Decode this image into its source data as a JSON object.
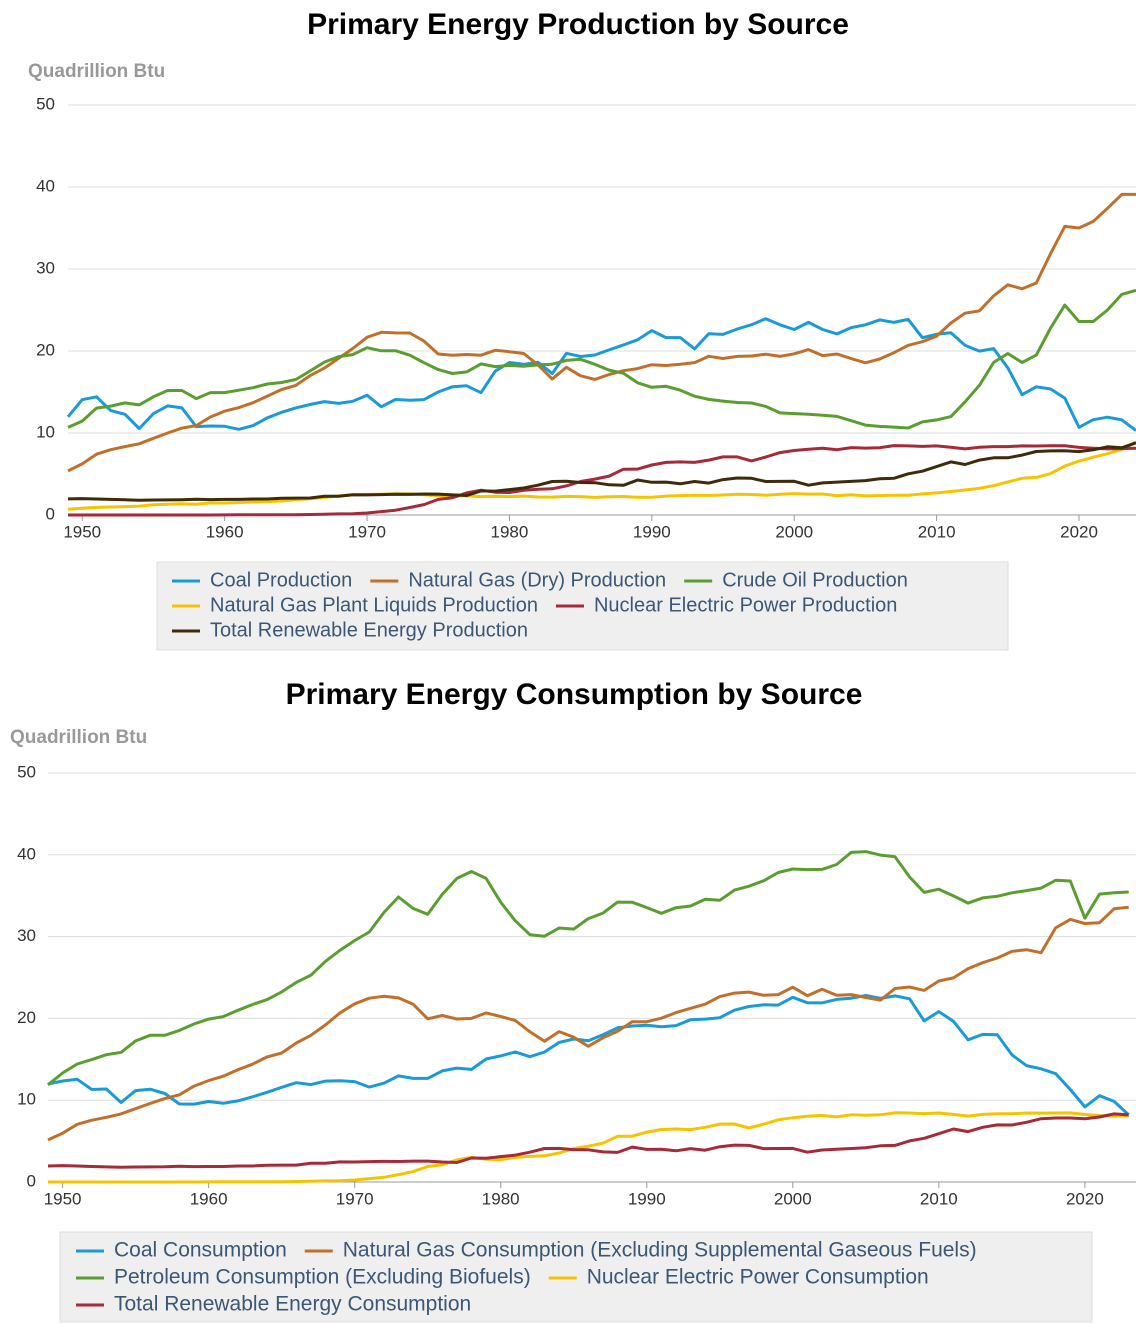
{
  "chart_data": [
    {
      "type": "line",
      "title": "Primary Energy Production by Source",
      "y_label": "Quadrillion Btu",
      "x": [
        1949,
        1950,
        1951,
        1952,
        1953,
        1954,
        1955,
        1956,
        1957,
        1958,
        1959,
        1960,
        1961,
        1962,
        1963,
        1964,
        1965,
        1966,
        1967,
        1968,
        1969,
        1970,
        1971,
        1972,
        1973,
        1974,
        1975,
        1976,
        1977,
        1978,
        1979,
        1980,
        1981,
        1982,
        1983,
        1984,
        1985,
        1986,
        1987,
        1988,
        1989,
        1990,
        1991,
        1992,
        1993,
        1994,
        1995,
        1996,
        1997,
        1998,
        1999,
        2000,
        2001,
        2002,
        2003,
        2004,
        2005,
        2006,
        2007,
        2008,
        2009,
        2010,
        2011,
        2012,
        2013,
        2014,
        2015,
        2016,
        2017,
        2018,
        2019,
        2020,
        2021,
        2022,
        2023,
        2024
      ],
      "xlim": [
        1949,
        2024
      ],
      "xticks": [
        1950,
        1960,
        1970,
        1980,
        1990,
        2000,
        2010,
        2020
      ],
      "ylim": [
        0,
        50
      ],
      "yticks": [
        0,
        10,
        20,
        30,
        40,
        50
      ],
      "grid": true,
      "series": [
        {
          "name": "Coal Production",
          "color": "#1a9ad6",
          "values": [
            11.97,
            14.06,
            14.41,
            12.73,
            12.28,
            10.54,
            12.37,
            13.31,
            13.06,
            10.78,
            10.85,
            10.82,
            10.45,
            10.9,
            11.85,
            12.52,
            13.06,
            13.47,
            13.83,
            13.61,
            13.86,
            14.61,
            13.19,
            14.09,
            13.99,
            14.07,
            15.0,
            15.65,
            15.76,
            14.91,
            17.54,
            18.6,
            18.38,
            18.64,
            17.25,
            19.72,
            19.33,
            19.51,
            20.14,
            20.74,
            21.36,
            22.49,
            21.64,
            21.63,
            20.25,
            22.11,
            22.03,
            22.68,
            23.21,
            23.94,
            23.19,
            22.62,
            23.49,
            22.62,
            22.09,
            22.85,
            23.19,
            23.79,
            23.49,
            23.85,
            21.62,
            22.04,
            22.22,
            20.68,
            19.99,
            20.29,
            17.95,
            14.67,
            15.63,
            15.36,
            14.26,
            10.7,
            11.62,
            11.93,
            11.6,
            10.3
          ]
        },
        {
          "name": "Natural Gas (Dry) Production",
          "color": "#c0702a",
          "values": [
            5.38,
            6.23,
            7.42,
            7.96,
            8.34,
            8.68,
            9.35,
            10.0,
            10.6,
            10.9,
            11.95,
            12.66,
            13.1,
            13.7,
            14.5,
            15.3,
            15.8,
            17.0,
            17.9,
            19.1,
            20.3,
            21.67,
            22.28,
            22.21,
            22.19,
            21.21,
            19.64,
            19.48,
            19.57,
            19.49,
            20.08,
            19.91,
            19.7,
            18.32,
            16.59,
            18.01,
            16.98,
            16.54,
            17.14,
            17.6,
            17.85,
            18.33,
            18.23,
            18.38,
            18.58,
            19.35,
            19.08,
            19.34,
            19.39,
            19.61,
            19.34,
            19.66,
            20.17,
            19.44,
            19.63,
            19.07,
            18.56,
            19.02,
            19.79,
            20.7,
            21.14,
            21.81,
            23.41,
            24.61,
            24.89,
            26.72,
            28.07,
            27.58,
            28.29,
            31.88,
            35.19,
            35.0,
            35.8,
            37.4,
            39.1,
            39.1
          ]
        },
        {
          "name": "Crude Oil Production",
          "color": "#5a9e2f",
          "values": [
            10.68,
            11.45,
            13.04,
            13.28,
            13.67,
            13.43,
            14.41,
            15.18,
            15.18,
            14.2,
            14.93,
            14.93,
            15.22,
            15.52,
            15.97,
            16.16,
            16.52,
            17.56,
            18.65,
            19.31,
            19.56,
            20.4,
            20.03,
            20.04,
            19.49,
            18.57,
            17.73,
            17.26,
            17.45,
            18.43,
            18.1,
            18.25,
            18.15,
            18.31,
            18.39,
            18.85,
            18.99,
            18.38,
            17.67,
            17.28,
            16.12,
            15.57,
            15.7,
            15.22,
            14.49,
            14.1,
            13.89,
            13.72,
            13.66,
            13.24,
            12.45,
            12.36,
            12.28,
            12.16,
            12.03,
            11.5,
            10.96,
            10.8,
            10.72,
            10.61,
            11.35,
            11.6,
            12.0,
            13.8,
            15.8,
            18.6,
            19.7,
            18.6,
            19.5,
            22.8,
            25.6,
            23.6,
            23.6,
            25.0,
            26.9,
            27.4
          ]
        },
        {
          "name": "Natural Gas Plant Liquids Production",
          "color": "#f5c400",
          "values": [
            0.71,
            0.82,
            0.93,
            0.98,
            1.03,
            1.08,
            1.24,
            1.32,
            1.36,
            1.32,
            1.48,
            1.46,
            1.53,
            1.59,
            1.64,
            1.71,
            1.88,
            1.99,
            2.14,
            2.33,
            2.45,
            2.51,
            2.54,
            2.6,
            2.57,
            2.47,
            2.37,
            2.33,
            2.33,
            2.25,
            2.29,
            2.25,
            2.31,
            2.19,
            2.18,
            2.27,
            2.24,
            2.15,
            2.22,
            2.26,
            2.16,
            2.17,
            2.31,
            2.36,
            2.41,
            2.39,
            2.44,
            2.53,
            2.5,
            2.42,
            2.53,
            2.61,
            2.55,
            2.56,
            2.35,
            2.47,
            2.33,
            2.36,
            2.41,
            2.42,
            2.57,
            2.69,
            2.87,
            3.05,
            3.25,
            3.57,
            4.02,
            4.47,
            4.59,
            5.05,
            5.96,
            6.57,
            7.05,
            7.48,
            8.0,
            8.9
          ]
        },
        {
          "name": "Nuclear Electric Power Production",
          "color": "#a52a3a",
          "values": [
            0,
            0,
            0,
            0,
            0,
            0,
            0,
            0,
            0,
            0,
            0,
            0.01,
            0.02,
            0.03,
            0.04,
            0.04,
            0.04,
            0.06,
            0.09,
            0.14,
            0.15,
            0.24,
            0.41,
            0.58,
            0.91,
            1.27,
            1.9,
            2.11,
            2.7,
            3.02,
            2.78,
            2.74,
            3.01,
            3.13,
            3.2,
            3.55,
            4.08,
            4.38,
            4.75,
            5.59,
            5.6,
            6.1,
            6.42,
            6.48,
            6.41,
            6.69,
            7.08,
            7.09,
            6.6,
            7.07,
            7.61,
            7.86,
            8.03,
            8.14,
            7.96,
            8.22,
            8.16,
            8.21,
            8.46,
            8.43,
            8.36,
            8.43,
            8.27,
            8.06,
            8.27,
            8.34,
            8.34,
            8.43,
            8.42,
            8.44,
            8.45,
            8.25,
            8.13,
            8.06,
            8.1,
            8.15
          ]
        },
        {
          "name": "Total Renewable Energy Production",
          "color": "#3d2b0a",
          "values": [
            1.96,
            2.0,
            1.95,
            1.9,
            1.85,
            1.81,
            1.83,
            1.84,
            1.86,
            1.92,
            1.88,
            1.9,
            1.9,
            1.95,
            1.95,
            2.05,
            2.06,
            2.07,
            2.29,
            2.28,
            2.46,
            2.45,
            2.49,
            2.52,
            2.51,
            2.56,
            2.55,
            2.45,
            2.38,
            2.94,
            2.91,
            3.1,
            3.29,
            3.64,
            4.09,
            4.11,
            3.96,
            3.94,
            3.68,
            3.62,
            4.27,
            3.99,
            4.01,
            3.81,
            4.08,
            3.89,
            4.32,
            4.51,
            4.47,
            4.08,
            4.1,
            4.11,
            3.64,
            3.91,
            4.01,
            4.1,
            4.19,
            4.42,
            4.48,
            5.02,
            5.34,
            5.9,
            6.48,
            6.16,
            6.69,
            6.98,
            6.97,
            7.3,
            7.74,
            7.82,
            7.83,
            7.73,
            7.95,
            8.32,
            8.2,
            8.8
          ]
        }
      ]
    },
    {
      "type": "line",
      "title": "Primary Energy Consumption by Source",
      "y_label": "Quadrillion Btu",
      "x": [
        1949,
        1950,
        1951,
        1952,
        1953,
        1954,
        1955,
        1956,
        1957,
        1958,
        1959,
        1960,
        1961,
        1962,
        1963,
        1964,
        1965,
        1966,
        1967,
        1968,
        1969,
        1970,
        1971,
        1972,
        1973,
        1974,
        1975,
        1976,
        1977,
        1978,
        1979,
        1980,
        1981,
        1982,
        1983,
        1984,
        1985,
        1986,
        1987,
        1988,
        1989,
        1990,
        1991,
        1992,
        1993,
        1994,
        1995,
        1996,
        1997,
        1998,
        1999,
        2000,
        2001,
        2002,
        2003,
        2004,
        2005,
        2006,
        2007,
        2008,
        2009,
        2010,
        2011,
        2012,
        2013,
        2014,
        2015,
        2016,
        2017,
        2018,
        2019,
        2020,
        2021,
        2022,
        2023
      ],
      "xlim": [
        1949,
        2023.5
      ],
      "xticks": [
        1950,
        1960,
        1970,
        1980,
        1990,
        2000,
        2010,
        2020
      ],
      "ylim": [
        0,
        50
      ],
      "yticks": [
        0,
        10,
        20,
        30,
        40,
        50
      ],
      "grid": true,
      "series": [
        {
          "name": "Coal Consumption",
          "color": "#1a9ad6",
          "values": [
            11.98,
            12.35,
            12.55,
            11.31,
            11.37,
            9.72,
            11.17,
            11.35,
            10.82,
            9.53,
            9.52,
            9.84,
            9.62,
            9.91,
            10.41,
            10.96,
            11.58,
            12.14,
            11.91,
            12.33,
            12.38,
            12.27,
            11.6,
            12.08,
            12.97,
            12.66,
            12.66,
            13.58,
            13.92,
            13.77,
            15.04,
            15.42,
            15.91,
            15.32,
            15.89,
            17.07,
            17.48,
            17.26,
            18.01,
            18.85,
            19.07,
            19.17,
            18.99,
            19.12,
            19.84,
            19.91,
            20.09,
            21.0,
            21.45,
            21.66,
            21.62,
            22.58,
            21.91,
            21.9,
            22.32,
            22.47,
            22.8,
            22.45,
            22.75,
            22.39,
            19.69,
            20.83,
            19.66,
            17.38,
            18.04,
            17.99,
            15.55,
            14.23,
            13.84,
            13.24,
            11.31,
            9.18,
            10.55,
            9.85,
            8.2
          ]
        },
        {
          "name": "Natural Gas Consumption (Excluding Supplemental Gaseous Fuels)",
          "color": "#c0702a",
          "values": [
            5.15,
            5.97,
            7.05,
            7.55,
            7.91,
            8.33,
            8.97,
            9.61,
            10.19,
            10.66,
            11.72,
            12.39,
            12.93,
            13.73,
            14.4,
            15.29,
            15.77,
            16.99,
            17.94,
            19.21,
            20.68,
            21.79,
            22.47,
            22.7,
            22.51,
            21.73,
            19.95,
            20.35,
            19.93,
            20.0,
            20.67,
            20.23,
            19.74,
            18.36,
            17.2,
            18.39,
            17.7,
            16.59,
            17.63,
            18.44,
            19.6,
            19.6,
            20.03,
            20.71,
            21.23,
            21.73,
            22.67,
            23.09,
            23.22,
            22.83,
            22.91,
            23.82,
            22.77,
            23.56,
            22.83,
            22.91,
            22.56,
            22.22,
            23.66,
            23.84,
            23.42,
            24.57,
            24.95,
            26.09,
            26.81,
            27.38,
            28.19,
            28.4,
            28.03,
            31.08,
            32.1,
            31.6,
            31.7,
            33.4,
            33.6
          ]
        },
        {
          "name": "Petroleum Consumption (Excluding Biofuels)",
          "color": "#5a9e2f",
          "values": [
            11.88,
            13.32,
            14.43,
            14.96,
            15.56,
            15.84,
            17.25,
            17.94,
            17.93,
            18.53,
            19.32,
            19.92,
            20.22,
            20.99,
            21.7,
            22.3,
            23.24,
            24.4,
            25.28,
            26.98,
            28.34,
            29.52,
            30.56,
            32.95,
            34.84,
            33.45,
            32.73,
            35.17,
            37.12,
            37.96,
            37.12,
            34.2,
            31.93,
            30.23,
            30.05,
            31.05,
            30.92,
            32.2,
            32.87,
            34.22,
            34.21,
            33.55,
            32.85,
            33.53,
            33.74,
            34.56,
            34.44,
            35.68,
            36.16,
            36.82,
            37.84,
            38.26,
            38.19,
            38.22,
            38.81,
            40.29,
            40.39,
            39.96,
            39.77,
            37.28,
            35.4,
            35.79,
            34.97,
            34.09,
            34.73,
            34.93,
            35.35,
            35.62,
            35.93,
            36.88,
            36.8,
            32.25,
            35.2,
            35.35,
            35.45
          ]
        },
        {
          "name": "Nuclear Electric Power Consumption",
          "color": "#f5c400",
          "values": [
            0,
            0,
            0,
            0,
            0,
            0,
            0,
            0,
            0,
            0,
            0,
            0.01,
            0.02,
            0.03,
            0.04,
            0.04,
            0.04,
            0.06,
            0.09,
            0.14,
            0.15,
            0.24,
            0.41,
            0.58,
            0.91,
            1.27,
            1.9,
            2.11,
            2.7,
            3.02,
            2.78,
            2.74,
            3.01,
            3.13,
            3.2,
            3.55,
            4.08,
            4.38,
            4.75,
            5.59,
            5.6,
            6.1,
            6.42,
            6.48,
            6.41,
            6.69,
            7.08,
            7.09,
            6.6,
            7.07,
            7.61,
            7.86,
            8.03,
            8.14,
            7.96,
            8.22,
            8.16,
            8.21,
            8.46,
            8.43,
            8.36,
            8.43,
            8.27,
            8.06,
            8.27,
            8.34,
            8.34,
            8.43,
            8.42,
            8.44,
            8.45,
            8.25,
            8.13,
            8.06,
            8.1
          ]
        },
        {
          "name": "Total Renewable Energy Consumption",
          "color": "#a52a3a",
          "values": [
            1.96,
            2.0,
            1.95,
            1.9,
            1.85,
            1.81,
            1.83,
            1.84,
            1.86,
            1.92,
            1.88,
            1.9,
            1.9,
            1.95,
            1.95,
            2.05,
            2.06,
            2.07,
            2.29,
            2.28,
            2.46,
            2.45,
            2.49,
            2.52,
            2.51,
            2.56,
            2.55,
            2.45,
            2.38,
            2.94,
            2.91,
            3.1,
            3.29,
            3.64,
            4.09,
            4.11,
            3.96,
            3.94,
            3.68,
            3.62,
            4.27,
            3.99,
            4.01,
            3.81,
            4.08,
            3.89,
            4.32,
            4.51,
            4.47,
            4.08,
            4.1,
            4.11,
            3.64,
            3.91,
            4.01,
            4.1,
            4.19,
            4.42,
            4.48,
            5.02,
            5.34,
            5.9,
            6.48,
            6.16,
            6.69,
            6.98,
            6.97,
            7.3,
            7.74,
            7.82,
            7.83,
            7.73,
            7.95,
            8.32,
            8.2
          ]
        }
      ]
    }
  ]
}
